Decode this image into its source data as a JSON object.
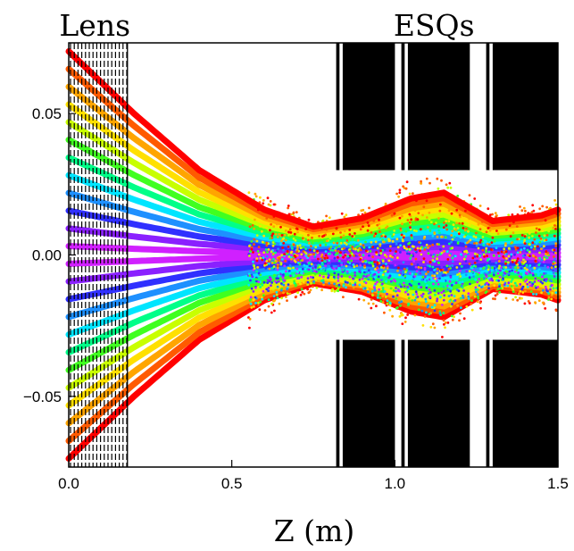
{
  "chart_data": {
    "type": "scatter",
    "title": "",
    "xlabel": "Z (m)",
    "ylabel": "",
    "xlim": [
      0.0,
      1.5
    ],
    "ylim": [
      -0.075,
      0.075
    ],
    "x_ticks": [
      {
        "value": 0.0,
        "label": "0.0"
      },
      {
        "value": 0.5,
        "label": "0.5"
      },
      {
        "value": 1.0,
        "label": "1.0"
      },
      {
        "value": 1.5,
        "label": "1.5"
      }
    ],
    "y_ticks": [
      {
        "value": 0.05,
        "label": "0.05"
      },
      {
        "value": 0.0,
        "label": "0.00"
      },
      {
        "value": -0.05,
        "label": "−0.05"
      }
    ],
    "grid": false,
    "region_labels": [
      {
        "name": "lens",
        "text": "Lens",
        "x": 0.08
      },
      {
        "name": "esqs",
        "text": "ESQs",
        "x": 1.12
      }
    ],
    "lens_region": {
      "x_start": 0.0,
      "x_end": 0.18
    },
    "esq_electrodes": [
      {
        "x_start": 0.82,
        "x_end": 0.83
      },
      {
        "x_start": 0.84,
        "x_end": 1.0
      },
      {
        "x_start": 1.02,
        "x_end": 1.03
      },
      {
        "x_start": 1.04,
        "x_end": 1.23
      },
      {
        "x_start": 1.28,
        "x_end": 1.29
      },
      {
        "x_start": 1.3,
        "x_end": 1.5
      }
    ],
    "esq_aperture": {
      "upper": 0.03,
      "lower": -0.03
    },
    "beamlets": {
      "count": 24,
      "initial_y_range": [
        -0.072,
        0.072
      ],
      "waist_z": 0.75,
      "envelope": [
        {
          "z": 0.0,
          "half_width": 0.072
        },
        {
          "z": 0.2,
          "half_width": 0.05
        },
        {
          "z": 0.4,
          "half_width": 0.03
        },
        {
          "z": 0.6,
          "half_width": 0.016
        },
        {
          "z": 0.75,
          "half_width": 0.01
        },
        {
          "z": 0.9,
          "half_width": 0.013
        },
        {
          "z": 1.05,
          "half_width": 0.02
        },
        {
          "z": 1.15,
          "half_width": 0.022
        },
        {
          "z": 1.3,
          "half_width": 0.012
        },
        {
          "z": 1.45,
          "half_width": 0.014
        },
        {
          "z": 1.5,
          "half_width": 0.016
        }
      ],
      "colors": [
        "#d020ff",
        "#8a20ff",
        "#3030ff",
        "#1e90ff",
        "#00e5ff",
        "#00ff88",
        "#40ff20",
        "#c8ff00",
        "#ffe000",
        "#ffa500",
        "#ff5a00",
        "#ff0000"
      ]
    }
  }
}
